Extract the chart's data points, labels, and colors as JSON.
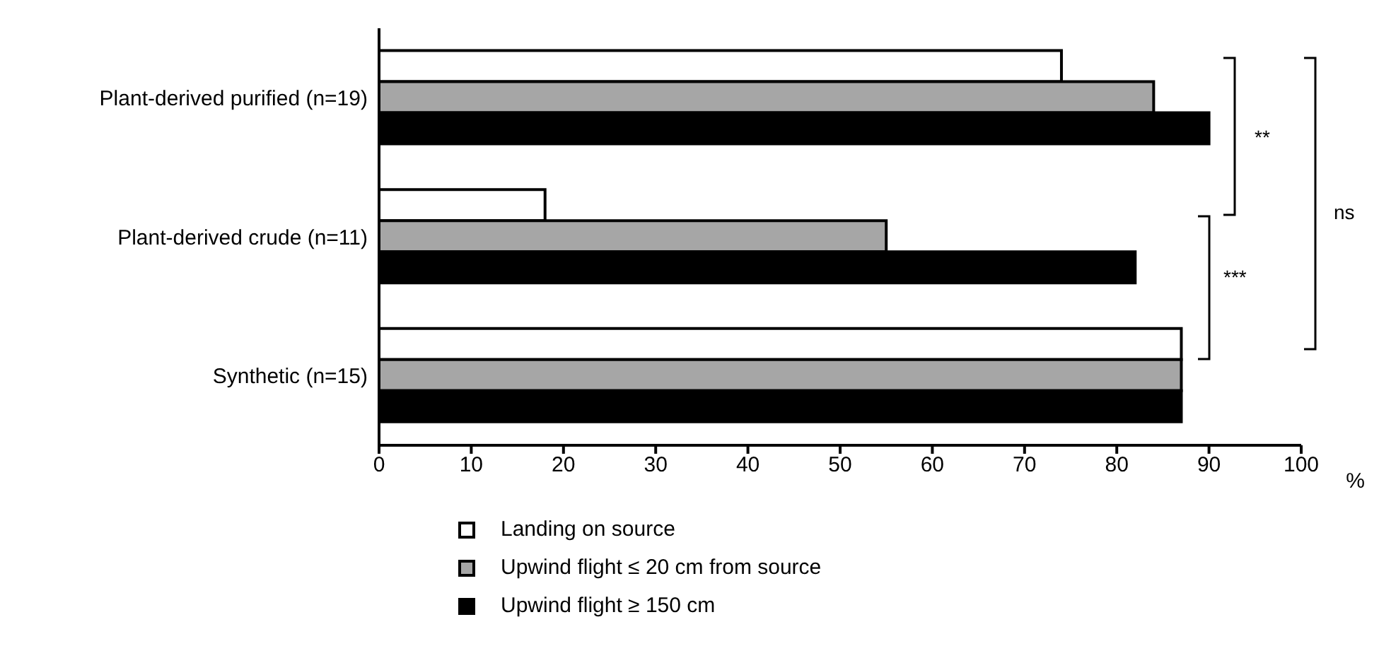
{
  "chart_data": {
    "type": "bar",
    "orientation": "horizontal",
    "xlabel": "%",
    "categories": [
      "Plant-derived purified (n=19)",
      "Plant-derived crude (n=11)",
      "Synthetic (n=15)"
    ],
    "series": [
      {
        "name": "Landing on source",
        "color": "#ffffff",
        "values": [
          74,
          18,
          87
        ]
      },
      {
        "name": "Upwind flight ≤ 20 cm from source",
        "color": "#a6a6a6",
        "values": [
          84,
          55,
          87
        ]
      },
      {
        "name": "Upwind flight ≥ 150 cm",
        "color": "#000000",
        "values": [
          90,
          82,
          87
        ]
      }
    ],
    "xlim": [
      0,
      100
    ],
    "xticks": [
      0,
      10,
      20,
      30,
      40,
      50,
      60,
      70,
      80,
      90,
      100
    ],
    "grid": false,
    "legend": "bottom",
    "annotations": [
      "**",
      "***",
      "ns"
    ]
  }
}
